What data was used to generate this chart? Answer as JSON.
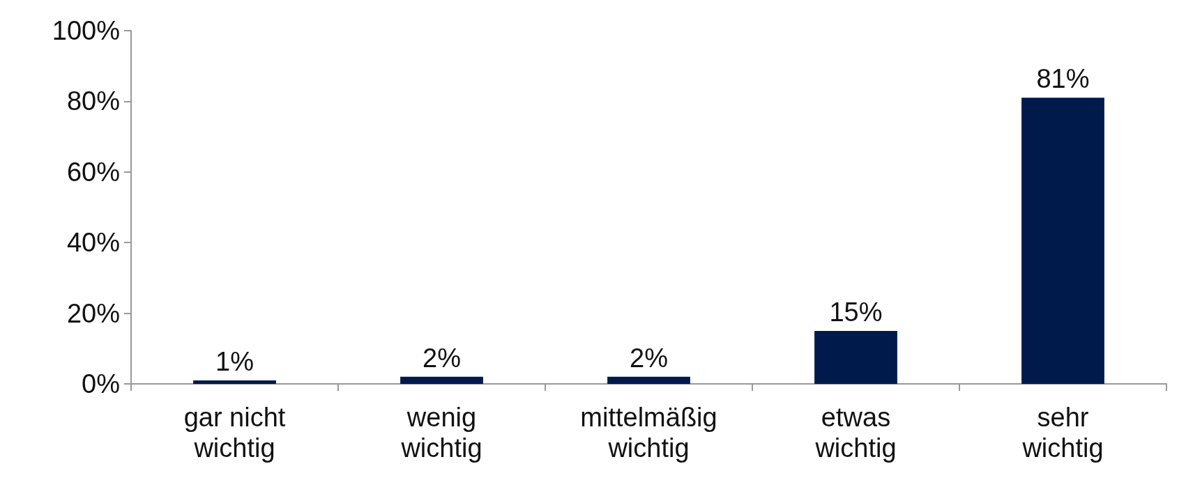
{
  "chart_data": {
    "type": "bar",
    "categories": [
      "gar nicht\nwichtig",
      "wenig\nwichtig",
      "mittelmäßig\nwichtig",
      "etwas\nwichtig",
      "sehr\nwichtig"
    ],
    "values": [
      1,
      2,
      2,
      15,
      81
    ],
    "color": "#001a4b",
    "value_labels": [
      "1%",
      "2%",
      "2%",
      "15%",
      "81%"
    ],
    "ylim": [
      0,
      100
    ],
    "yticks": [
      {
        "value": 0,
        "label": "0%"
      },
      {
        "value": 20,
        "label": "20%"
      },
      {
        "value": 40,
        "label": "40%"
      },
      {
        "value": 60,
        "label": "60%"
      },
      {
        "value": 80,
        "label": "80%"
      },
      {
        "value": 100,
        "label": "100%"
      }
    ],
    "grid": false
  }
}
